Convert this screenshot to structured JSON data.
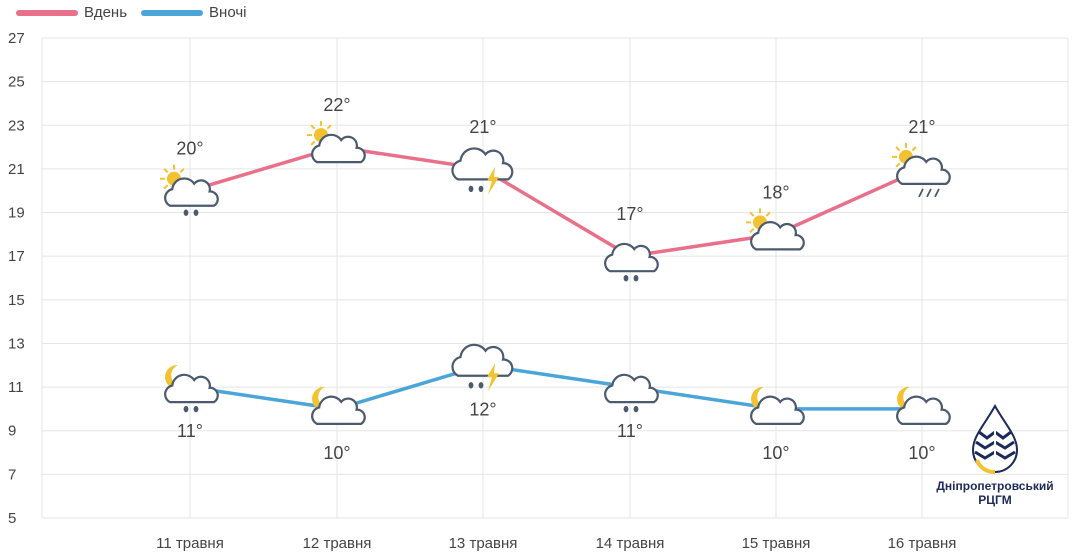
{
  "legend": {
    "day_label": "Вдень",
    "night_label": "Вночі"
  },
  "logo": {
    "line1": "Дніпропетровський",
    "line2": "РЦГМ"
  },
  "colors": {
    "day": "#e8708a",
    "night": "#4aa5d8",
    "grid": "#e5e5e5",
    "text": "#444444",
    "sun": "#f2c230",
    "cloud": "#4b5a6e"
  },
  "chart_data": {
    "type": "line",
    "categories": [
      "11 травня",
      "12 травня",
      "13 травня",
      "14 травня",
      "15 травня",
      "16 травня"
    ],
    "ylim": [
      5,
      27
    ],
    "yticks": [
      5,
      7,
      9,
      11,
      13,
      15,
      17,
      19,
      21,
      23,
      25,
      27
    ],
    "grid": true,
    "legend_position": "top-left",
    "series": [
      {
        "name": "Вдень",
        "values": [
          20,
          22,
          21,
          17,
          18,
          21
        ],
        "labels": [
          "20°",
          "22°",
          "21°",
          "17°",
          "18°",
          "21°"
        ],
        "icons": [
          "sun-cloud-rain-icon",
          "sun-cloud-icon",
          "thunderstorm-rain-icon",
          "cloud-rain-icon",
          "sun-cloud-icon",
          "sun-cloud-sleet-icon"
        ]
      },
      {
        "name": "Вночі",
        "values": [
          11,
          10,
          12,
          11,
          10,
          10
        ],
        "labels": [
          "11°",
          "10°",
          "12°",
          "11°",
          "10°",
          "10°"
        ],
        "icons": [
          "moon-cloud-rain-icon",
          "moon-cloud-icon",
          "thunderstorm-rain-icon",
          "cloud-rain-icon",
          "moon-cloud-icon",
          "moon-cloud-icon"
        ]
      }
    ]
  }
}
